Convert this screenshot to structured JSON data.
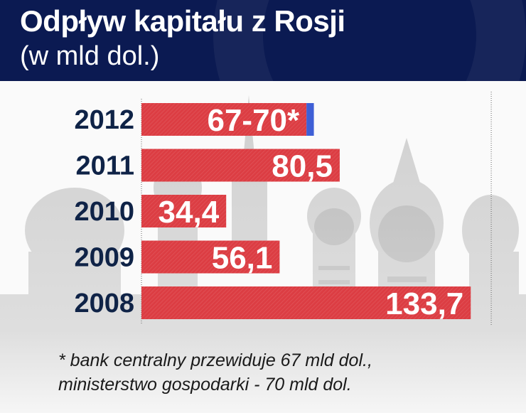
{
  "header": {
    "title": "Odpływ kapitału z Rosji",
    "subtitle": "(w mld dol.)"
  },
  "chart_data": {
    "type": "bar",
    "orientation": "horizontal",
    "categories": [
      "2012",
      "2011",
      "2010",
      "2009",
      "2008"
    ],
    "values": [
      68.5,
      80.5,
      34.4,
      56.1,
      133.7
    ],
    "value_labels": [
      "67-70*",
      "80,5",
      "34,4",
      "56,1",
      "133,7"
    ],
    "range_2012": [
      67,
      70
    ],
    "xlim": [
      0,
      170
    ],
    "grid": false,
    "colors": {
      "bar": "#dc3d43",
      "range_marker": "#3e5fd6",
      "label": "#ffffff",
      "year": "#0f2347",
      "axis": "#666666"
    }
  },
  "footnote": {
    "line1": "* bank centralny przewiduje 67 mld dol.,",
    "line2": "ministerstwo gospodarki - 70 mld dol."
  }
}
